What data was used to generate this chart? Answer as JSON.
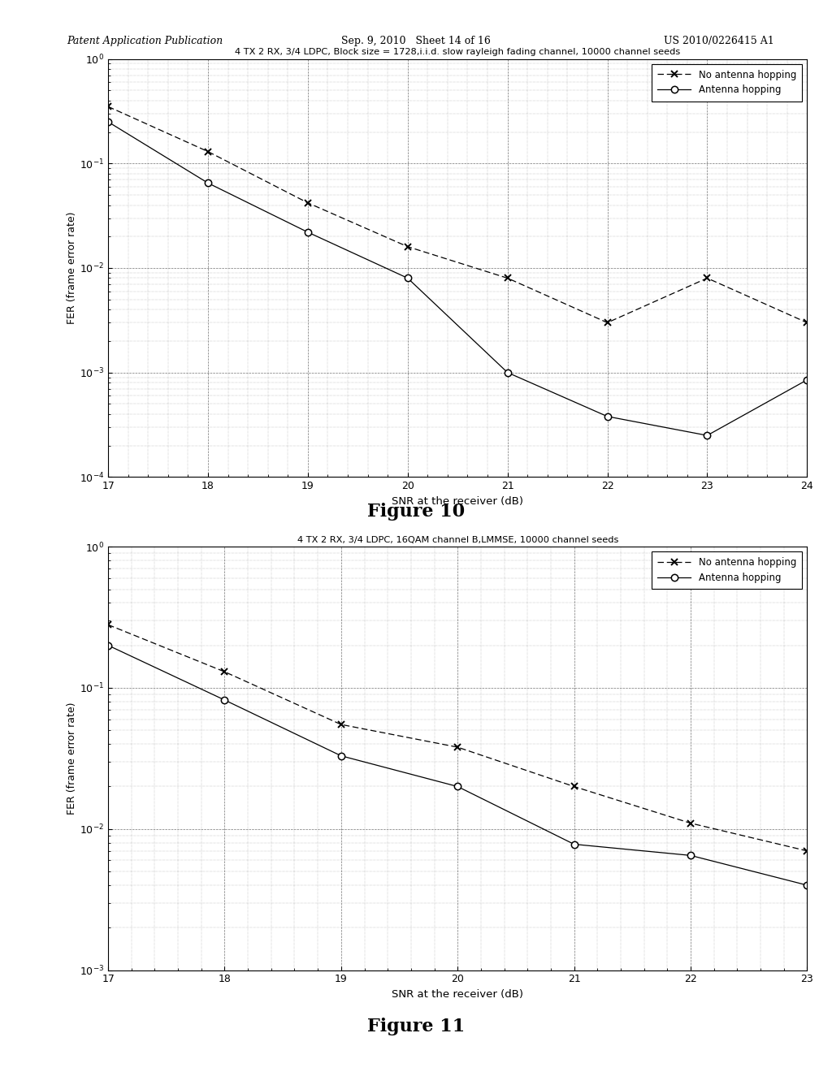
{
  "fig10": {
    "title": "4 TX 2 RX, 3/4 LDPC, Block size = 1728,i.i.d. slow rayleigh fading channel, 10000 channel seeds",
    "xlabel": "SNR at the receiver (dB)",
    "ylabel": "FER (frame error rate)",
    "xlim": [
      17,
      24
    ],
    "ylim_exp_min": -4,
    "ylim_exp_max": 0,
    "xticks": [
      17,
      18,
      19,
      20,
      21,
      22,
      23,
      24
    ],
    "no_hop_x": [
      17,
      18,
      19,
      20,
      21,
      22,
      23,
      24
    ],
    "no_hop_y": [
      0.35,
      0.13,
      0.042,
      0.016,
      0.008,
      0.003,
      0.008,
      0.003
    ],
    "hop_x": [
      17,
      18,
      19,
      20,
      21,
      22,
      23,
      24
    ],
    "hop_y": [
      0.25,
      0.065,
      0.022,
      0.008,
      0.001,
      0.00038,
      0.00025,
      0.00085
    ],
    "legend_no_hop": "No antenna hopping",
    "legend_hop": "Antenna hopping",
    "figure_label": "Figure 10"
  },
  "fig11": {
    "title": "4 TX 2 RX, 3/4 LDPC, 16QAM channel B,LMMSE, 10000 channel seeds",
    "xlabel": "SNR at the receiver (dB)",
    "ylabel": "FER (frame error rate)",
    "xlim": [
      17,
      23
    ],
    "ylim_exp_min": -3,
    "ylim_exp_max": 0,
    "xticks": [
      17,
      18,
      19,
      20,
      21,
      22,
      23
    ],
    "no_hop_x": [
      17,
      18,
      19,
      20,
      21,
      22,
      23
    ],
    "no_hop_y": [
      0.28,
      0.13,
      0.055,
      0.038,
      0.02,
      0.011,
      0.007
    ],
    "hop_x": [
      17,
      18,
      19,
      20,
      21,
      22,
      23
    ],
    "hop_y": [
      0.2,
      0.082,
      0.033,
      0.02,
      0.0078,
      0.0065,
      0.004
    ],
    "legend_no_hop": "No antenna hopping",
    "legend_hop": "Antenna hopping",
    "figure_label": "Figure 11"
  },
  "bg_color": "#ffffff",
  "header_left": "Patent Application Publication",
  "header_mid": "Sep. 9, 2010   Sheet 14 of 16",
  "header_right": "US 2010/0226415 A1"
}
